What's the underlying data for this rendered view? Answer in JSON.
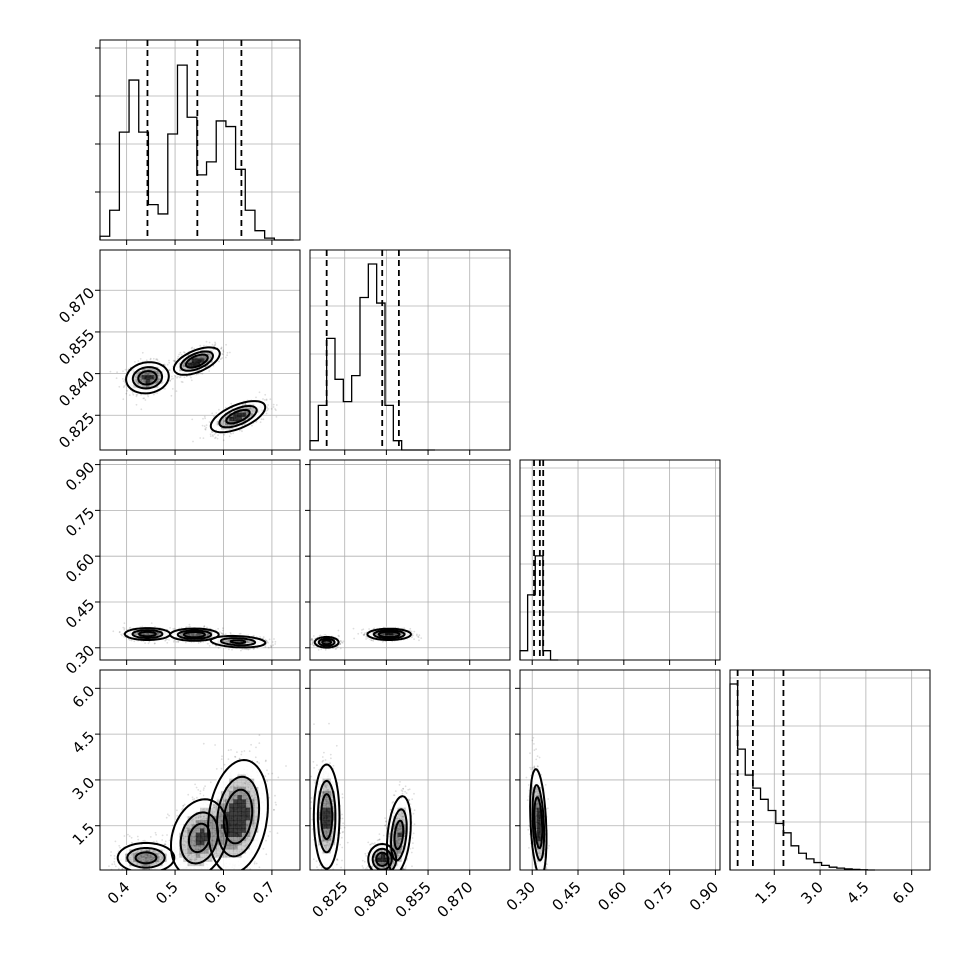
{
  "chart_data": {
    "type": "corner",
    "title": "",
    "dimensions": [
      {
        "range": [
          0.345,
          0.758
        ],
        "ticks": [
          0.4,
          0.5,
          0.6,
          0.7
        ],
        "tick_labels": [
          "0.4",
          "0.5",
          "0.6",
          "0.7"
        ],
        "quantiles": [
          0.443,
          0.546,
          0.637
        ]
      },
      {
        "range": [
          0.8125,
          0.8845
        ],
        "ticks": [
          0.825,
          0.84,
          0.855,
          0.87
        ],
        "tick_labels": [
          "0.825",
          "0.840",
          "0.855",
          "0.870"
        ],
        "quantiles": [
          0.8185,
          0.8385,
          0.8445
        ]
      },
      {
        "range": [
          0.26,
          0.915
        ],
        "ticks": [
          0.3,
          0.45,
          0.6,
          0.75,
          0.9
        ],
        "tick_labels": [
          "0.30",
          "0.45",
          "0.60",
          "0.75",
          "0.90"
        ],
        "quantiles": [
          0.306,
          0.325,
          0.336
        ]
      },
      {
        "range": [
          0.05,
          6.6
        ],
        "ticks": [
          1.5,
          3.0,
          4.5,
          6.0
        ],
        "tick_labels": [
          "1.5",
          "3.0",
          "4.5",
          "6.0"
        ],
        "quantiles": [
          0.3,
          0.8,
          1.8
        ]
      }
    ],
    "histograms": [
      {
        "name": "0",
        "edges": [
          0.345,
          0.365,
          0.385,
          0.405,
          0.425,
          0.445,
          0.465,
          0.485,
          0.505,
          0.525,
          0.545,
          0.565,
          0.585,
          0.605,
          0.625,
          0.645,
          0.665,
          0.685,
          0.705,
          0.725,
          0.745
        ],
        "counts": [
          0.02,
          0.16,
          0.58,
          0.86,
          0.58,
          0.19,
          0.14,
          0.57,
          0.94,
          0.66,
          0.35,
          0.42,
          0.64,
          0.61,
          0.38,
          0.16,
          0.05,
          0.01,
          0.0,
          0.0
        ]
      },
      {
        "name": "1",
        "edges": [
          0.8125,
          0.8155,
          0.8185,
          0.8215,
          0.8245,
          0.8275,
          0.8305,
          0.8335,
          0.8365,
          0.8395,
          0.8425,
          0.8455,
          0.8485,
          0.8515,
          0.8545,
          0.8575
        ],
        "counts": [
          0.05,
          0.24,
          0.6,
          0.38,
          0.26,
          0.4,
          0.82,
          1.0,
          0.79,
          0.24,
          0.05,
          0.0,
          0.0,
          0.0,
          0.0
        ]
      },
      {
        "name": "2",
        "edges": [
          0.26,
          0.285,
          0.31,
          0.335,
          0.36,
          0.385
        ],
        "counts": [
          0.05,
          0.35,
          0.56,
          0.05,
          0.0
        ]
      },
      {
        "name": "3",
        "edges": [
          0.05,
          0.3,
          0.55,
          0.8,
          1.05,
          1.3,
          1.55,
          1.8,
          2.05,
          2.3,
          2.55,
          2.8,
          3.05,
          3.3,
          3.55,
          3.8,
          4.05,
          4.3,
          4.55,
          4.8
        ],
        "counts": [
          1.0,
          0.65,
          0.51,
          0.44,
          0.38,
          0.32,
          0.25,
          0.2,
          0.13,
          0.09,
          0.06,
          0.04,
          0.025,
          0.015,
          0.01,
          0.006,
          0.003,
          0.001,
          0.0
        ]
      }
    ],
    "pairs": [
      {
        "x": 0,
        "y": 1,
        "clusters": [
          {
            "center": [
              0.443,
              0.8385
            ],
            "sd": [
              0.022,
              0.0028
            ],
            "rho": 0.1,
            "weight": 0.9
          },
          {
            "center": [
              0.545,
              0.8445
            ],
            "sd": [
              0.023,
              0.0024
            ],
            "rho": 0.55,
            "weight": 1.0
          },
          {
            "center": [
              0.63,
              0.8245
            ],
            "sd": [
              0.028,
              0.0028
            ],
            "rho": 0.6,
            "weight": 0.9
          }
        ]
      },
      {
        "x": 0,
        "y": 2,
        "clusters": [
          {
            "center": [
              0.443,
              0.345
            ],
            "sd": [
              0.024,
              0.01
            ],
            "rho": 0.0,
            "weight": 0.8
          },
          {
            "center": [
              0.54,
              0.343
            ],
            "sd": [
              0.025,
              0.01
            ],
            "rho": 0.0,
            "weight": 0.9
          },
          {
            "center": [
              0.63,
              0.32
            ],
            "sd": [
              0.03,
              0.01
            ],
            "rho": -0.2,
            "weight": 0.7
          }
        ]
      },
      {
        "x": 0,
        "y": 3,
        "clusters": [
          {
            "center": [
              0.44,
              0.45
            ],
            "sd": [
              0.03,
              0.25
            ],
            "rho": 0.0,
            "weight": 0.8
          },
          {
            "center": [
              0.55,
              1.1
            ],
            "sd": [
              0.03,
              0.65
            ],
            "rho": 0.2,
            "weight": 0.8
          },
          {
            "center": [
              0.63,
              1.8
            ],
            "sd": [
              0.03,
              0.9
            ],
            "rho": 0.2,
            "weight": 1.0
          }
        ]
      },
      {
        "x": 1,
        "y": 2,
        "clusters": [
          {
            "center": [
              0.8185,
              0.318
            ],
            "sd": [
              0.0022,
              0.009
            ],
            "rho": 0.0,
            "weight": 0.8
          },
          {
            "center": [
              0.841,
              0.344
            ],
            "sd": [
              0.0038,
              0.009
            ],
            "rho": 0.0,
            "weight": 1.0
          }
        ]
      },
      {
        "x": 1,
        "y": 3,
        "clusters": [
          {
            "center": [
              0.8185,
              1.8
            ],
            "sd": [
              0.0023,
              0.85
            ],
            "rho": 0.0,
            "weight": 0.9
          },
          {
            "center": [
              0.8385,
              0.4
            ],
            "sd": [
              0.0025,
              0.25
            ],
            "rho": 0.0,
            "weight": 0.9
          },
          {
            "center": [
              0.8445,
              1.2
            ],
            "sd": [
              0.0022,
              0.65
            ],
            "rho": 0.3,
            "weight": 0.8
          }
        ]
      },
      {
        "x": 2,
        "y": 3,
        "clusters": [
          {
            "center": [
              0.32,
              1.6
            ],
            "sd": [
              0.013,
              0.85
            ],
            "rho": -0.3,
            "weight": 1.0
          }
        ]
      }
    ],
    "grid": true,
    "quantile_line_style": "dashed"
  }
}
